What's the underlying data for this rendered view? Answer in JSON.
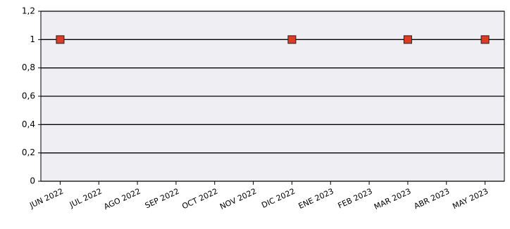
{
  "chart_data": {
    "type": "scatter",
    "categories": [
      "JUN 2022",
      "JUL 2022",
      "AGO 2022",
      "SEP 2022",
      "OCT 2022",
      "NOV 2022",
      "DIC 2022",
      "ENE 2023",
      "FEB 2023",
      "MAR 2023",
      "ABR 2023",
      "MAY 2023"
    ],
    "values": [
      1,
      null,
      null,
      null,
      null,
      null,
      1,
      null,
      null,
      1,
      null,
      1
    ],
    "color": "#e03a22",
    "ylim": [
      0,
      1.2
    ],
    "yticks": [
      0,
      {
        "value": 0.2,
        "label": "0,2"
      },
      {
        "value": 0.4,
        "label": "0,4"
      },
      {
        "value": 0.6,
        "label": "0,6"
      },
      {
        "value": 0.8,
        "label": "0,8"
      },
      1,
      {
        "value": 1.2,
        "label": "1,2"
      }
    ],
    "grid": true
  }
}
